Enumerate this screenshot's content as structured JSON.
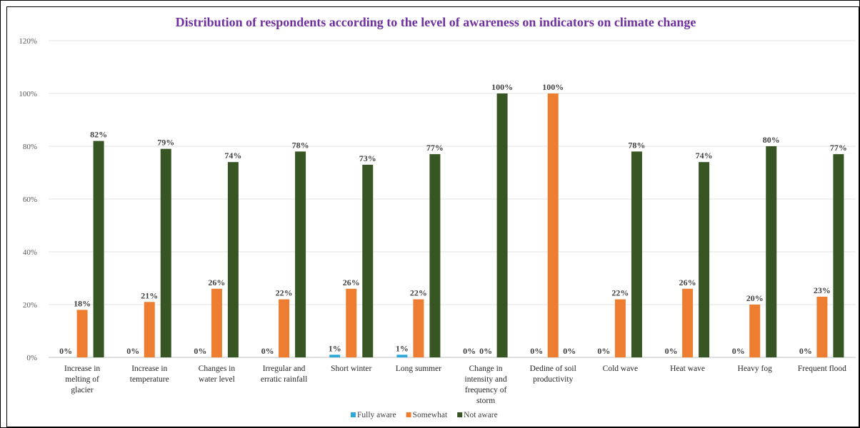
{
  "chart_data": {
    "type": "bar",
    "title": "Distribution  of respondents  according to the level of awareness on indicators on climate change",
    "xlabel": "",
    "ylabel": "",
    "ylim": [
      0,
      1.2
    ],
    "yticks": [
      "0%",
      "20%",
      "40%",
      "60%",
      "80%",
      "100%",
      "120%"
    ],
    "grid": true,
    "legend_position": "bottom",
    "categories": [
      "Increase in melting of glacier",
      "Increase in temperature",
      "Changes in water level",
      "Irregular and erratic rainfall",
      "Short winter",
      "Long summer",
      "Change in intensity and frequency of storm",
      "Decline of soil productivity",
      "Cold wave",
      "Heat wave",
      "Heavy fog",
      "Frequent flood"
    ],
    "category_lines": [
      [
        "Increase in",
        "melting of",
        "glacier"
      ],
      [
        "Increase in",
        "temperature"
      ],
      [
        "Changes in",
        "water level"
      ],
      [
        "Irregular and",
        "erratic rainfall"
      ],
      [
        "Short winter"
      ],
      [
        "Long summer"
      ],
      [
        "Change in",
        "intensity and",
        "frequency of",
        "storm"
      ],
      [
        "Dedine of soil",
        "productivity"
      ],
      [
        "Cold wave"
      ],
      [
        "Heat wave"
      ],
      [
        "Heavy fog"
      ],
      [
        "Frequent flood"
      ]
    ],
    "series": [
      {
        "name": "Fully aware",
        "color": "#2ea8d8",
        "values": [
          0,
          0,
          0,
          0,
          0.01,
          0.01,
          0,
          0,
          0,
          0,
          0,
          0
        ],
        "labels": [
          "0%",
          "0%",
          "0%",
          "0%",
          "1%",
          "1%",
          "0%",
          "0%",
          "0%",
          "0%",
          "0%",
          "0%"
        ]
      },
      {
        "name": "Somewhat",
        "color": "#ed7d31",
        "values": [
          0.18,
          0.21,
          0.26,
          0.22,
          0.26,
          0.22,
          0,
          1.0,
          0.22,
          0.26,
          0.2,
          0.23
        ],
        "labels": [
          "18%",
          "21%",
          "26%",
          "22%",
          "26%",
          "22%",
          "0%",
          "100%",
          "22%",
          "26%",
          "20%",
          "23%"
        ]
      },
      {
        "name": "Not aware",
        "color": "#375623",
        "values": [
          0.82,
          0.79,
          0.74,
          0.78,
          0.73,
          0.77,
          1.0,
          0,
          0.78,
          0.74,
          0.8,
          0.77
        ],
        "labels": [
          "82%",
          "79%",
          "74%",
          "78%",
          "73%",
          "77%",
          "100%",
          "0%",
          "78%",
          "74%",
          "80%",
          "77%"
        ]
      }
    ],
    "title_color": "#7030a0"
  }
}
